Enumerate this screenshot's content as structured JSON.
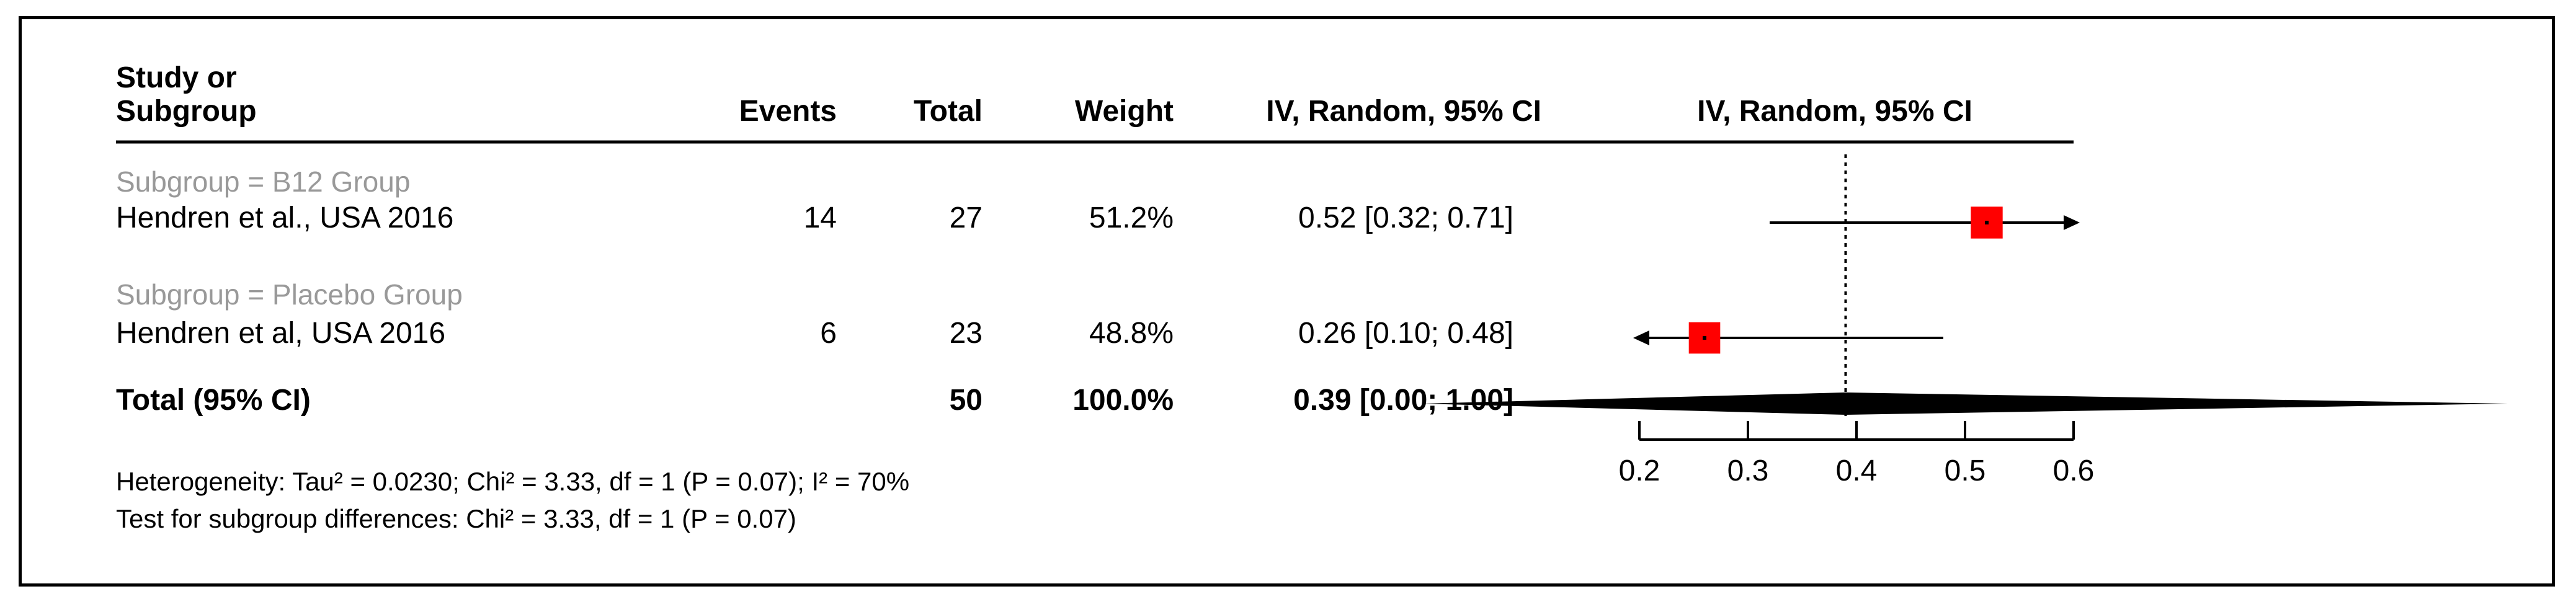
{
  "headers": {
    "study_line1": "Study or",
    "study_line2": "Subgroup",
    "events": "Events",
    "total": "Total",
    "weight": "Weight",
    "ci_text": "IV, Random, 95% CI",
    "ci_plot": "IV, Random, 95% CI"
  },
  "rows": [
    {
      "kind": "subgroup",
      "label": "Subgroup = B12 Group"
    },
    {
      "kind": "study",
      "study": "Hendren et al., USA 2016",
      "events": "14",
      "total": "27",
      "weight": "51.2%",
      "ci_text": "0.52 [0.32; 0.71]"
    },
    {
      "kind": "subgroup",
      "label": "Subgroup = Placebo Group"
    },
    {
      "kind": "study",
      "study": "Hendren et al, USA 2016",
      "events": "6",
      "total": "23",
      "weight": "48.8%",
      "ci_text": "0.26 [0.10; 0.48]"
    },
    {
      "kind": "total",
      "study": "Total (95% CI)",
      "total": "50",
      "weight": "100.0%",
      "ci_text": "0.39 [0.00; 1.00]"
    }
  ],
  "footer": {
    "heterogeneity": "Heterogeneity: Tau² = 0.0230; Chi² = 3.33, df = 1 (P = 0.07); I² = 70%",
    "subgroup_test": "Test for subgroup differences: Chi² = 3.33, df = 1 (P = 0.07)"
  },
  "colors": {
    "square": "#ff0000",
    "subgroup_text": "#999999",
    "text": "#000000",
    "diamond": "#000000"
  },
  "chart_data": {
    "type": "scatter",
    "subtype": "forest-plot",
    "xlim": [
      0.2,
      0.6
    ],
    "ticks": [
      0.2,
      0.3,
      0.4,
      0.5,
      0.6
    ],
    "tick_labels": [
      "0.2",
      "0.3",
      "0.4",
      "0.5",
      "0.6"
    ],
    "reference_line": 0.39,
    "studies": [
      {
        "estimate": 0.52,
        "lower": 0.32,
        "upper": 0.71,
        "weight": 51.2,
        "upper_arrow": true,
        "lower_arrow": false
      },
      {
        "estimate": 0.26,
        "lower": 0.1,
        "upper": 0.48,
        "weight": 48.8,
        "upper_arrow": false,
        "lower_arrow": true
      }
    ],
    "pooled": {
      "estimate": 0.39,
      "lower": 0.0,
      "upper": 1.0
    }
  }
}
